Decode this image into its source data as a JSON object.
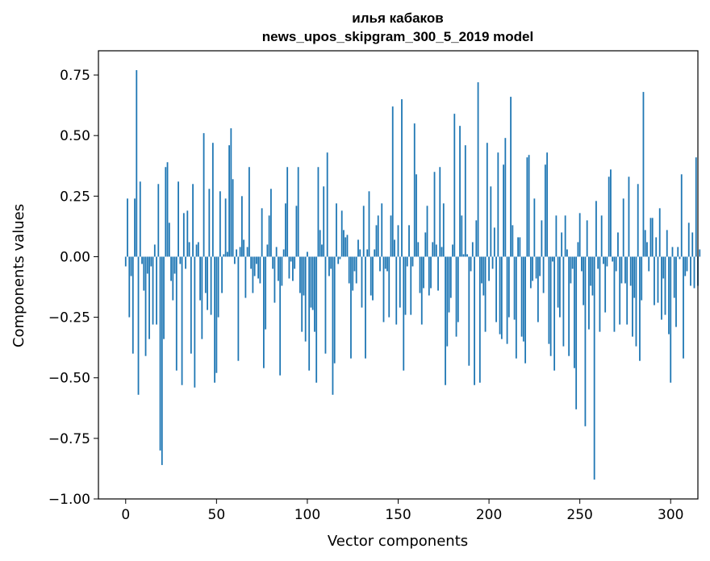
{
  "chart_data": {
    "type": "bar",
    "title_line1": "илья кабаков",
    "title_line2": "news_upos_skipgram_300_5_2019 model",
    "xlabel": "Vector components",
    "ylabel": "Components values",
    "xlim": [
      -15,
      315
    ],
    "ylim": [
      -1.0,
      0.85
    ],
    "xticks": [
      0,
      50,
      100,
      150,
      200,
      250,
      300
    ],
    "xtick_labels": [
      "0",
      "50",
      "100",
      "150",
      "200",
      "250",
      "300"
    ],
    "yticks": [
      -1.0,
      -0.75,
      -0.5,
      -0.25,
      0.0,
      0.25,
      0.5,
      0.75
    ],
    "ytick_labels": [
      "−1.00",
      "−0.75",
      "−0.50",
      "−0.25",
      "0.00",
      "0.25",
      "0.50",
      "0.75"
    ],
    "bar_color": "#1f77b4",
    "grid": false,
    "values": [
      -0.04,
      0.24,
      -0.25,
      -0.08,
      -0.4,
      0.24,
      0.77,
      -0.57,
      0.31,
      -0.03,
      -0.14,
      -0.41,
      -0.07,
      -0.34,
      -0.04,
      -0.28,
      0.05,
      -0.28,
      0.3,
      -0.8,
      -0.86,
      -0.34,
      0.37,
      0.39,
      0.14,
      -0.1,
      -0.18,
      -0.07,
      -0.47,
      0.31,
      -0.03,
      -0.53,
      0.18,
      -0.05,
      0.19,
      0.06,
      -0.4,
      0.3,
      -0.54,
      0.05,
      0.06,
      -0.18,
      -0.34,
      0.51,
      -0.15,
      -0.22,
      0.28,
      -0.24,
      0.47,
      -0.52,
      -0.48,
      -0.25,
      0.27,
      -0.15,
      0.01,
      0.24,
      0.02,
      0.46,
      0.53,
      0.32,
      -0.03,
      0.03,
      -0.43,
      0.04,
      0.25,
      0.07,
      -0.17,
      0.04,
      0.37,
      -0.05,
      -0.15,
      -0.08,
      -0.03,
      -0.09,
      -0.11,
      0.2,
      -0.46,
      -0.3,
      0.05,
      0.17,
      0.28,
      -0.05,
      -0.19,
      0.04,
      -0.1,
      -0.49,
      -0.12,
      0.03,
      0.22,
      0.37,
      -0.09,
      -0.02,
      -0.1,
      -0.05,
      0.21,
      0.37,
      -0.15,
      -0.31,
      -0.16,
      -0.35,
      0.02,
      -0.47,
      -0.21,
      -0.22,
      -0.31,
      -0.52,
      0.37,
      0.11,
      0.05,
      0.29,
      -0.4,
      0.43,
      -0.08,
      -0.05,
      -0.57,
      -0.44,
      0.22,
      -0.03,
      -0.01,
      0.19,
      0.11,
      0.08,
      0.09,
      -0.11,
      -0.42,
      -0.14,
      -0.06,
      -0.11,
      0.07,
      0.03,
      -0.21,
      0.21,
      -0.42,
      0.03,
      0.27,
      -0.16,
      -0.18,
      0.03,
      0.13,
      0.17,
      -0.06,
      0.22,
      -0.27,
      -0.05,
      -0.06,
      -0.25,
      0.17,
      0.62,
      0.07,
      -0.28,
      0.13,
      -0.21,
      0.65,
      -0.47,
      -0.24,
      -0.04,
      0.13,
      -0.24,
      -0.04,
      0.55,
      0.34,
      0.06,
      -0.15,
      -0.28,
      -0.13,
      0.1,
      0.21,
      -0.16,
      -0.13,
      0.06,
      0.35,
      0.05,
      -0.14,
      0.37,
      0.04,
      0.22,
      -0.53,
      -0.37,
      -0.23,
      -0.17,
      0.05,
      0.59,
      -0.33,
      -0.27,
      0.54,
      0.17,
      0.01,
      0.46,
      0.01,
      -0.45,
      -0.06,
      0.06,
      -0.53,
      0.15,
      0.72,
      -0.52,
      -0.11,
      -0.16,
      -0.31,
      0.47,
      -0.1,
      0.29,
      -0.05,
      0.12,
      -0.27,
      0.43,
      -0.32,
      -0.34,
      0.38,
      0.49,
      -0.36,
      -0.25,
      0.66,
      0.13,
      -0.26,
      -0.42,
      0.08,
      0.08,
      -0.33,
      -0.35,
      -0.44,
      0.41,
      0.42,
      -0.13,
      -0.1,
      0.24,
      -0.09,
      -0.27,
      -0.08,
      0.15,
      -0.15,
      0.38,
      0.43,
      -0.36,
      -0.41,
      -0.02,
      -0.47,
      0.17,
      -0.21,
      -0.25,
      0.1,
      -0.37,
      0.17,
      0.03,
      -0.41,
      -0.11,
      -0.05,
      -0.46,
      -0.63,
      0.06,
      0.18,
      -0.06,
      -0.2,
      -0.7,
      0.15,
      -0.3,
      -0.12,
      -0.16,
      -0.92,
      0.23,
      -0.05,
      -0.31,
      0.17,
      -0.03,
      -0.23,
      -0.04,
      0.33,
      0.36,
      -0.02,
      -0.31,
      -0.06,
      0.1,
      -0.28,
      -0.11,
      0.24,
      -0.11,
      -0.28,
      0.33,
      -0.12,
      -0.33,
      -0.17,
      -0.37,
      0.3,
      -0.43,
      -0.18,
      0.68,
      0.11,
      0.06,
      -0.06,
      0.16,
      0.16,
      -0.2,
      0.08,
      -0.19,
      0.2,
      -0.26,
      -0.09,
      -0.24,
      0.11,
      -0.32,
      -0.52,
      0.04,
      -0.17,
      -0.29,
      0.04,
      -0.01,
      0.34,
      -0.42,
      -0.08,
      -0.06,
      0.14,
      -0.12,
      0.1,
      -0.13,
      0.41,
      -0.12,
      0.03
    ]
  }
}
